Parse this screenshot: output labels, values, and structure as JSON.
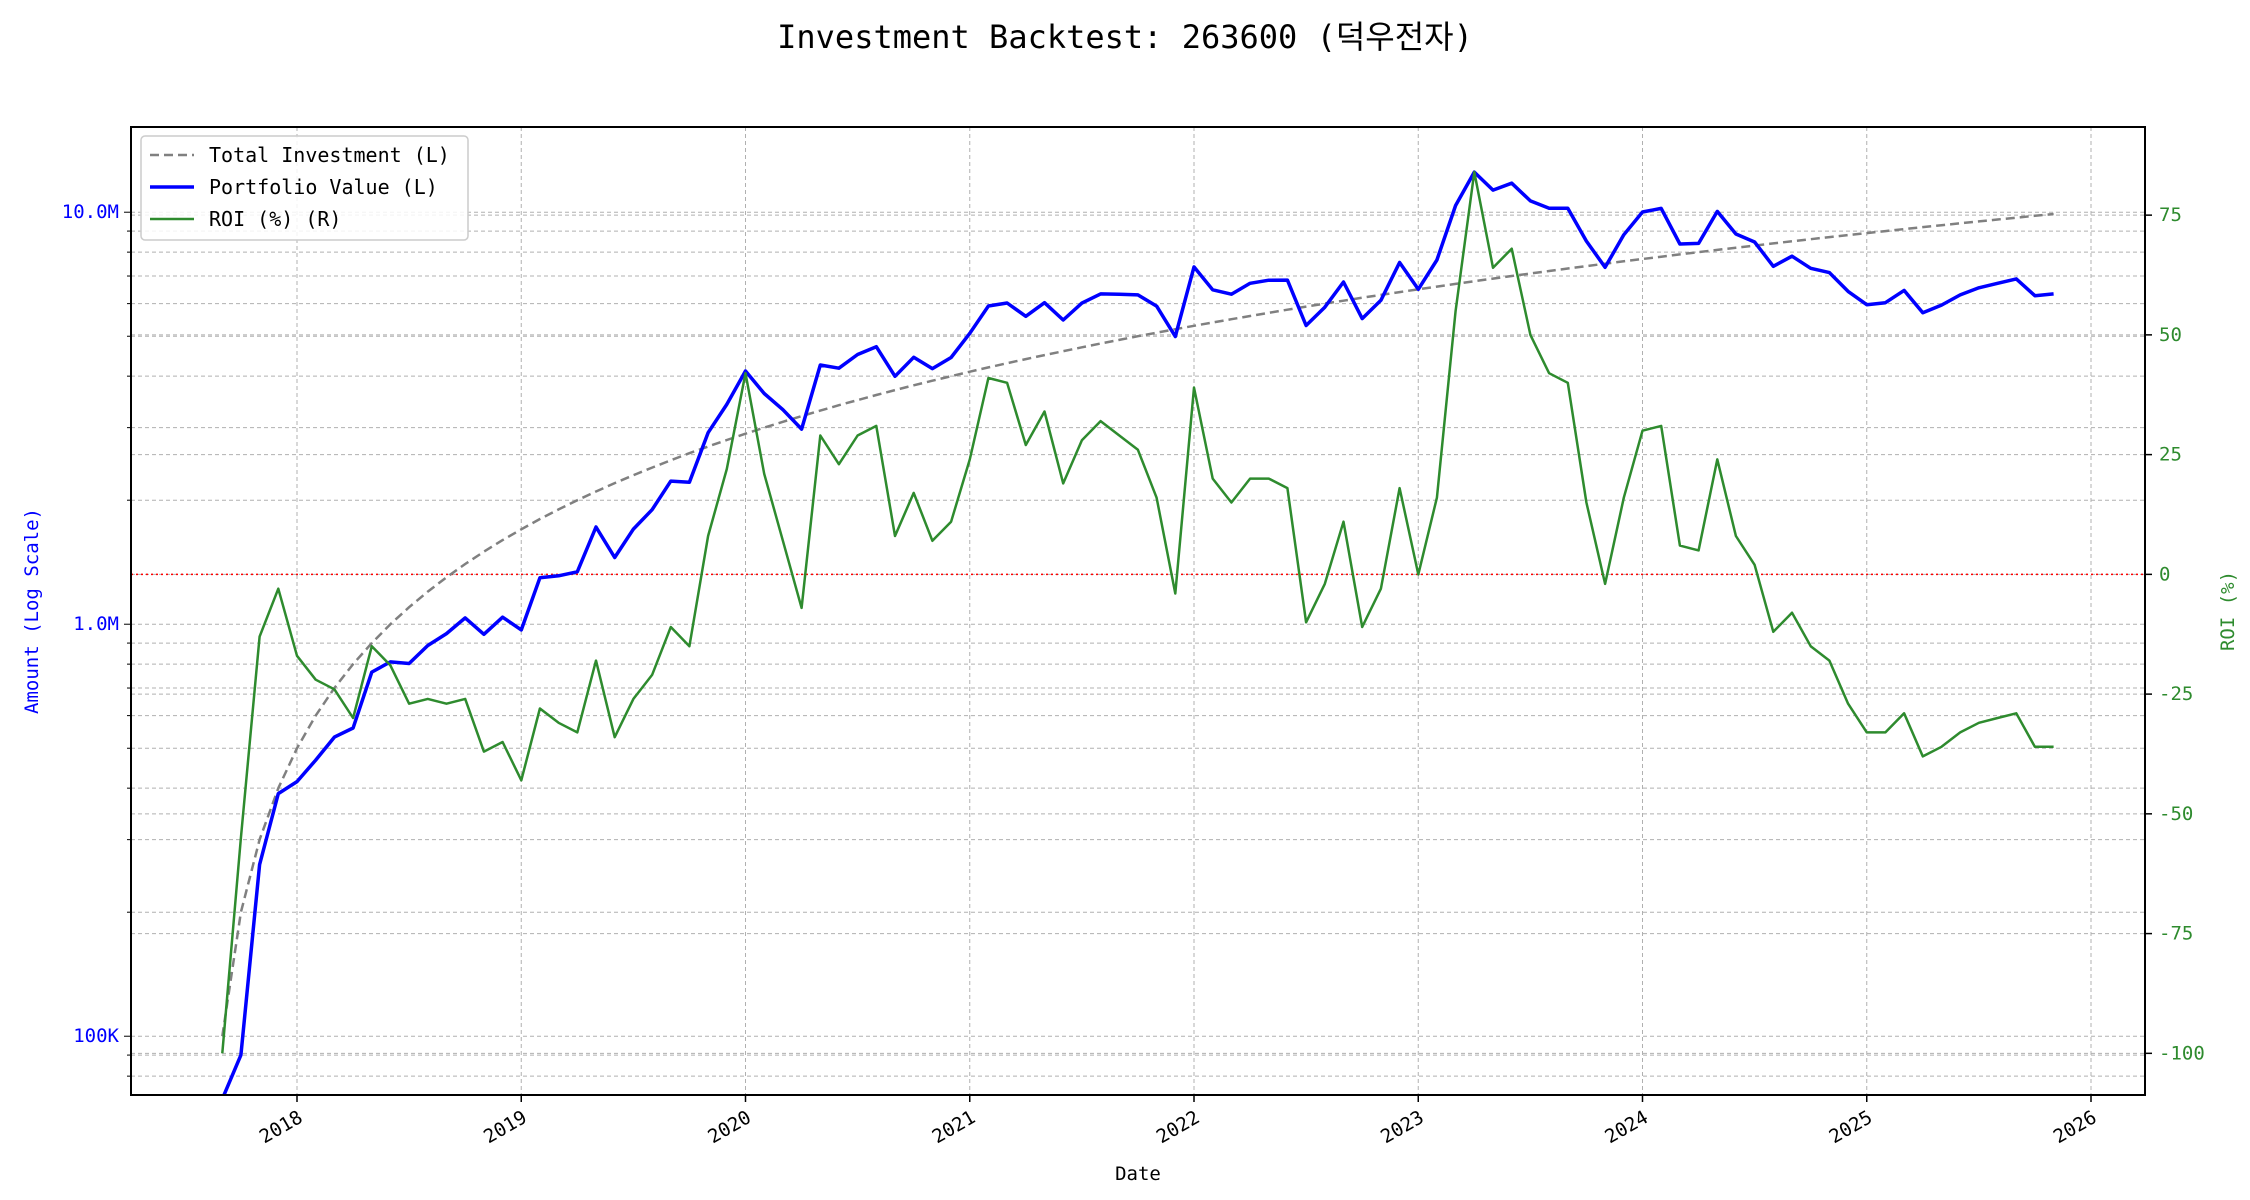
{
  "chart_data": {
    "type": "line",
    "title": "Investment Backtest: 263600 (덕우전자)",
    "xlabel": "Date",
    "ylabel_left": "Amount (Log Scale)",
    "ylabel_right": "ROI (%)",
    "x_start_month": "2017-09",
    "x_frequency": "monthly",
    "x_ticks": [
      "2018",
      "2019",
      "2020",
      "2021",
      "2022",
      "2023",
      "2024",
      "2025",
      "2026"
    ],
    "y_left_scale": "log",
    "y_left_ticks": [
      {
        "value": 100000,
        "label": "100K"
      },
      {
        "value": 1000000,
        "label": "1.0M"
      },
      {
        "value": 10000000,
        "label": "10.0M"
      }
    ],
    "y_left_range": [
      72000,
      16100000
    ],
    "y_right_ticks": [
      -100,
      -75,
      -50,
      -25,
      0,
      25,
      50,
      75
    ],
    "y_right_range": [
      -108.7,
      93.4
    ],
    "reference_line": {
      "axis": "right",
      "value": 0,
      "color": "#ff0000",
      "style": "dotted"
    },
    "grid": true,
    "legend_position": "top-left",
    "series": [
      {
        "name": "Total Investment (L)",
        "axis": "left",
        "color": "#808080",
        "style": "dashed",
        "unit": "thousand",
        "values": [
          100,
          200,
          300,
          400,
          500,
          600,
          700,
          800,
          900,
          1000,
          1100,
          1200,
          1300,
          1400,
          1500,
          1600,
          1700,
          1800,
          1900,
          2000,
          2100,
          2200,
          2300,
          2400,
          2500,
          2600,
          2700,
          2800,
          2900,
          3000,
          3100,
          3200,
          3300,
          3400,
          3500,
          3600,
          3700,
          3800,
          3900,
          4000,
          4100,
          4200,
          4300,
          4400,
          4500,
          4600,
          4700,
          4800,
          4900,
          5000,
          5100,
          5200,
          5300,
          5400,
          5500,
          5600,
          5700,
          5800,
          5900,
          6000,
          6100,
          6200,
          6300,
          6400,
          6500,
          6600,
          6700,
          6800,
          6900,
          7000,
          7100,
          7200,
          7300,
          7400,
          7500,
          7600,
          7700,
          7800,
          7900,
          8000,
          8100,
          8200,
          8300,
          8400,
          8500,
          8600,
          8700,
          8800,
          8900,
          9000,
          9100,
          9200,
          9300,
          9400,
          9500,
          9600,
          9700,
          9800,
          9900
        ]
      },
      {
        "name": "Portfolio Value (L)",
        "axis": "left",
        "color": "#0000ff",
        "style": "solid",
        "unit": "thousand",
        "values": [
          0,
          90,
          261,
          388,
          415,
          468,
          532,
          560,
          765,
          810,
          803,
          888,
          949,
          1036,
          945,
          1040,
          969,
          1296,
          1311,
          1340,
          1722,
          1452,
          1702,
          1896,
          2225,
          2210,
          2916,
          3416,
          4118,
          3630,
          3317,
          2976,
          4257,
          4182,
          4515,
          4716,
          3996,
          4446,
          4173,
          4440,
          5084,
          5922,
          6020,
          5588,
          6030,
          5474,
          6016,
          6336,
          6321,
          6300,
          5916,
          4992,
          7367,
          6480,
          6325,
          6720,
          6840,
          6844,
          5310,
          5880,
          6771,
          5518,
          6111,
          7552,
          6500,
          7656,
          10385,
          12512,
          11316,
          11760,
          10650,
          10224,
          10220,
          8510,
          7350,
          8816,
          10010,
          10218,
          8374,
          8400,
          10044,
          8856,
          8466,
          7392,
          7820,
          7310,
          7134,
          6424,
          5963,
          6030,
          6461,
          5704,
          5952,
          6298,
          6555,
          6720,
          6887,
          6272,
          6336
        ]
      },
      {
        "name": "ROI (%) (R)",
        "axis": "right",
        "color": "#2e8b2e",
        "style": "solid",
        "unit": "percent",
        "values": [
          -100,
          -55,
          -13,
          -3,
          -17,
          -22,
          -24,
          -30,
          -15,
          -19,
          -27,
          -26,
          -27,
          -26,
          -37,
          -35,
          -43,
          -28,
          -31,
          -33,
          -18,
          -34,
          -26,
          -21,
          -11,
          -15,
          8,
          22,
          42,
          21,
          7,
          -7,
          29,
          23,
          29,
          31,
          8,
          17,
          7,
          11,
          24,
          41,
          40,
          27,
          34,
          19,
          28,
          32,
          29,
          26,
          16,
          -4,
          39,
          20,
          15,
          20,
          20,
          18,
          -10,
          -2,
          11,
          -11,
          -3,
          18,
          0,
          16,
          55,
          84,
          64,
          68,
          50,
          42,
          40,
          15,
          -2,
          16,
          30,
          31,
          6,
          5,
          24,
          8,
          2,
          -12,
          -8,
          -15,
          -18,
          -27,
          -33,
          -33,
          -29,
          -38,
          -36,
          -33,
          -31,
          -30,
          -29,
          -36,
          -36
        ]
      }
    ]
  }
}
